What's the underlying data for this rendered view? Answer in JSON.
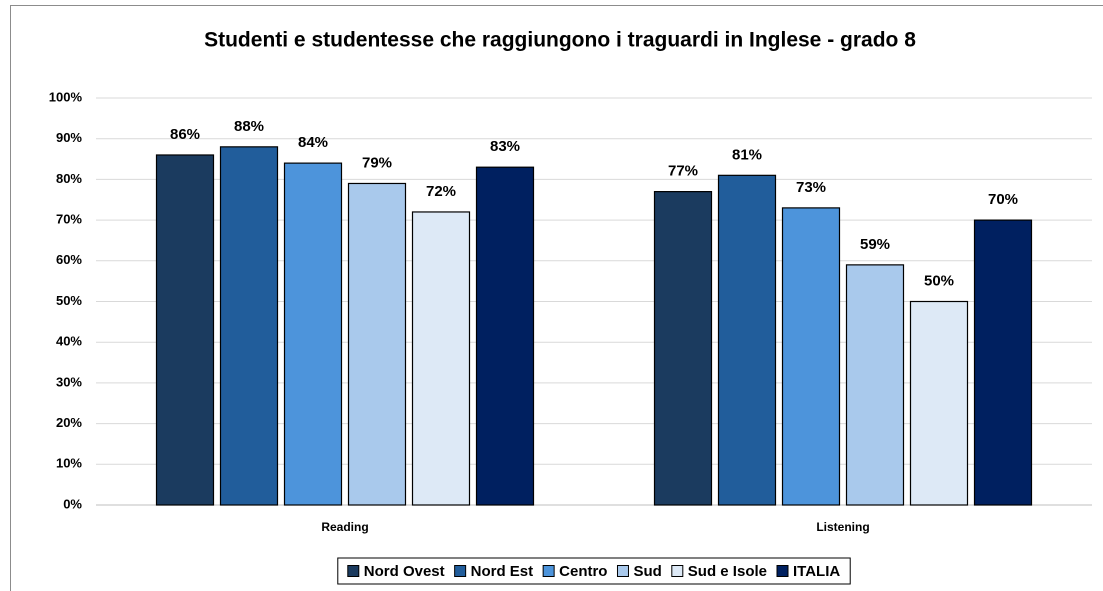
{
  "chart_data": {
    "type": "bar",
    "title": "Studenti e studentesse che raggiungono i traguardi in Inglese - grado 8",
    "categories": [
      "Reading",
      "Listening"
    ],
    "series": [
      {
        "name": "Nord Ovest",
        "color": "#1b3b5f",
        "values": [
          86,
          77
        ],
        "value_labels": [
          "86%",
          "77%"
        ]
      },
      {
        "name": "Nord Est",
        "color": "#215d9b",
        "values": [
          88,
          81
        ],
        "value_labels": [
          "88%",
          "81%"
        ]
      },
      {
        "name": "Centro",
        "color": "#4d94db",
        "values": [
          84,
          73
        ],
        "value_labels": [
          "84%",
          "73%"
        ]
      },
      {
        "name": "Sud",
        "color": "#a9c9ec",
        "values": [
          79,
          59
        ],
        "value_labels": [
          "79%",
          "59%"
        ]
      },
      {
        "name": "Sud e Isole",
        "color": "#dde9f6",
        "values": [
          72,
          50
        ],
        "value_labels": [
          "72%",
          "50%"
        ]
      },
      {
        "name": "ITALIA",
        "color": "#002060",
        "values": [
          83,
          70
        ],
        "value_labels": [
          "83%",
          "70%"
        ]
      }
    ],
    "ylim": [
      0,
      100
    ],
    "yticks": [
      {
        "value": 0,
        "label": "0%"
      },
      {
        "value": 10,
        "label": "10%"
      },
      {
        "value": 20,
        "label": "20%"
      },
      {
        "value": 30,
        "label": "30%"
      },
      {
        "value": 40,
        "label": "40%"
      },
      {
        "value": 50,
        "label": "50%"
      },
      {
        "value": 60,
        "label": "60%"
      },
      {
        "value": 70,
        "label": "70%"
      },
      {
        "value": 80,
        "label": "80%"
      },
      {
        "value": 90,
        "label": "90%"
      },
      {
        "value": 100,
        "label": "100%"
      }
    ],
    "grid": true,
    "legend": "bottom"
  }
}
